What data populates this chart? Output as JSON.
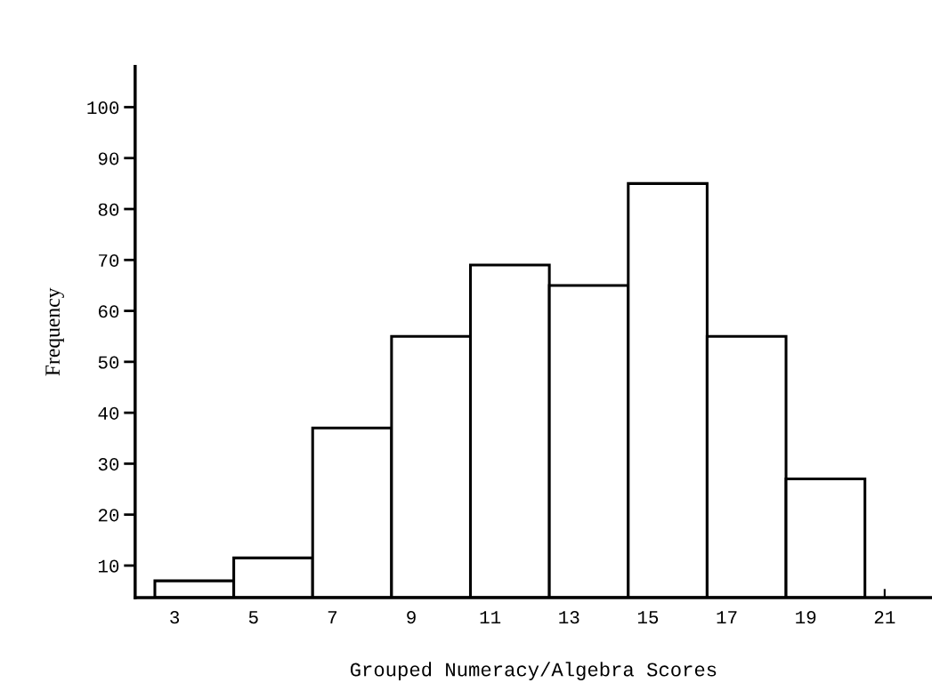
{
  "chart_data": {
    "type": "histogram",
    "xlabel": "Grouped Numeracy/Algebra Scores",
    "ylabel": "Frequency",
    "bins": [
      2.5,
      4.5,
      6.5,
      8.5,
      10.5,
      12.5,
      14.5,
      16.5,
      18.5,
      20.5
    ],
    "values": [
      7,
      11.5,
      37,
      55,
      69,
      65,
      85,
      55,
      27
    ],
    "color": "#ffffff",
    "xlim": [
      2,
      22.2
    ],
    "xticks": [
      3,
      5,
      7,
      9,
      11,
      13,
      15,
      17,
      19,
      21
    ],
    "ylim": [
      3.7,
      108
    ],
    "yticks": [
      10,
      20,
      30,
      40,
      50,
      60,
      70,
      80,
      90,
      100
    ],
    "grid": false
  }
}
